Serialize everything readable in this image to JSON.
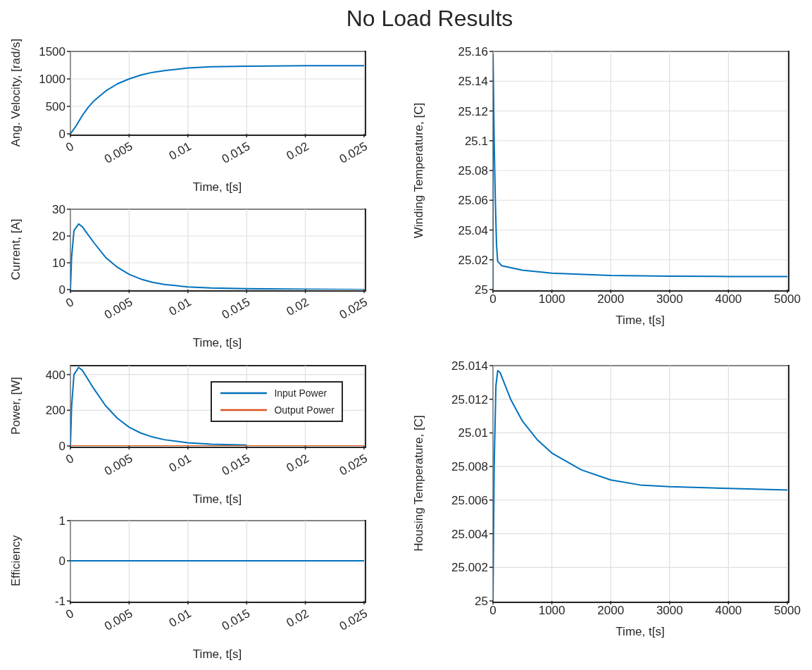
{
  "chart_data": [
    {
      "type": "line",
      "title": "No Load Results",
      "xlabel": "Time, t[s]",
      "ylabel": "Ang. Velocity, [rad/s]",
      "x": [
        0,
        0.0005,
        0.001,
        0.0015,
        0.002,
        0.003,
        0.004,
        0.005,
        0.006,
        0.007,
        0.008,
        0.01,
        0.012,
        0.015,
        0.02,
        0.025
      ],
      "series": [
        {
          "color": "#0072bd",
          "values": [
            0,
            150,
            330,
            480,
            600,
            780,
            910,
            1000,
            1070,
            1120,
            1150,
            1200,
            1220,
            1230,
            1240,
            1240
          ]
        }
      ],
      "xlim": [
        0,
        0.025
      ],
      "xticks": [
        0,
        0.005,
        0.01,
        0.015,
        0.02,
        0.025
      ],
      "ylim": [
        0,
        1500
      ],
      "yticks": [
        0,
        500,
        1000,
        1500
      ],
      "grid": true,
      "legend": false
    },
    {
      "type": "line",
      "xlabel": "Time, t[s]",
      "ylabel": "Current, [A]",
      "x": [
        0,
        0.0001,
        0.0003,
        0.0007,
        0.001,
        0.002,
        0.003,
        0.004,
        0.005,
        0.006,
        0.007,
        0.008,
        0.01,
        0.012,
        0.015,
        0.02,
        0.025
      ],
      "series": [
        {
          "color": "#0072bd",
          "values": [
            0,
            12,
            22,
            24.5,
            23.5,
            17.5,
            12,
            8.3,
            5.7,
            3.9,
            2.7,
            1.9,
            1,
            0.6,
            0.3,
            0.1,
            0
          ]
        }
      ],
      "xlim": [
        0,
        0.025
      ],
      "xticks": [
        0,
        0.005,
        0.01,
        0.015,
        0.02,
        0.025
      ],
      "ylim": [
        0,
        30
      ],
      "yticks": [
        0,
        10,
        20,
        30
      ],
      "grid": true,
      "legend": false
    },
    {
      "type": "line",
      "xlabel": "Time, t[s]",
      "ylabel": "Power, [W]",
      "x": [
        0,
        0.0001,
        0.0003,
        0.0007,
        0.001,
        0.002,
        0.003,
        0.004,
        0.005,
        0.006,
        0.007,
        0.008,
        0.01,
        0.012,
        0.015,
        0.02,
        0.025
      ],
      "series": [
        {
          "name": "Input Power",
          "color": "#0072bd",
          "values": [
            0,
            220,
            400,
            440,
            425,
            320,
            225,
            155,
            105,
            72,
            50,
            35,
            18,
            10,
            5,
            null,
            null
          ]
        },
        {
          "name": "Output Power",
          "color": "#d95319",
          "values": [
            0,
            0,
            0,
            0,
            0,
            0,
            0,
            0,
            0,
            0,
            0,
            0,
            0,
            0,
            0,
            0,
            0
          ]
        }
      ],
      "xlim": [
        0,
        0.025
      ],
      "xticks": [
        0,
        0.005,
        0.01,
        0.015,
        0.02,
        0.025
      ],
      "ylim": [
        0,
        450
      ],
      "yticks": [
        0,
        200,
        400
      ],
      "grid": true,
      "legend": "top right"
    },
    {
      "type": "line",
      "xlabel": "Time, t[s]",
      "ylabel": "Efficiency",
      "x": [
        0,
        0.025
      ],
      "series": [
        {
          "color": "#0072bd",
          "values": [
            0,
            0
          ]
        }
      ],
      "xlim": [
        0,
        0.025
      ],
      "xticks": [
        0,
        0.005,
        0.01,
        0.015,
        0.02,
        0.025
      ],
      "ylim": [
        -1,
        1
      ],
      "yticks": [
        -1,
        0,
        1
      ],
      "grid": true,
      "legend": false
    },
    {
      "type": "line",
      "xlabel": "Time, t[s]",
      "ylabel": "Winding Temperature, [C]",
      "x": [
        0,
        1,
        20,
        40,
        60,
        80,
        150,
        500,
        1000,
        2000,
        3000,
        4000,
        5000
      ],
      "series": [
        {
          "color": "#0072bd",
          "values": [
            25,
            25.158,
            25.1,
            25.06,
            25.03,
            25.019,
            25.016,
            25.013,
            25.011,
            25.0095,
            25.009,
            25.0088,
            25.0087
          ]
        }
      ],
      "xlim": [
        0,
        5000
      ],
      "xticks": [
        0,
        1000,
        2000,
        3000,
        4000,
        5000
      ],
      "ylim": [
        25,
        25.16
      ],
      "yticks": [
        25,
        25.02,
        25.04,
        25.06,
        25.08,
        25.1,
        25.12,
        25.14,
        25.16
      ],
      "grid": true,
      "legend": false
    },
    {
      "type": "line",
      "xlabel": "Time, t[s]",
      "ylabel": "Housing Temperature, [C]",
      "x": [
        0,
        20,
        50,
        80,
        120,
        300,
        500,
        750,
        1000,
        1500,
        2000,
        2500,
        3000,
        4000,
        5000
      ],
      "series": [
        {
          "color": "#0072bd",
          "values": [
            25,
            25.008,
            25.0128,
            25.0137,
            25.0136,
            25.012,
            25.0107,
            25.0096,
            25.0088,
            25.0078,
            25.0072,
            25.0069,
            25.0068,
            25.0067,
            25.0066
          ]
        }
      ],
      "xlim": [
        0,
        5000
      ],
      "xticks": [
        0,
        1000,
        2000,
        3000,
        4000,
        5000
      ],
      "ylim": [
        25,
        25.014
      ],
      "yticks": [
        25,
        25.002,
        25.004,
        25.006,
        25.008,
        25.01,
        25.012,
        25.014
      ],
      "grid": true,
      "legend": false
    }
  ]
}
